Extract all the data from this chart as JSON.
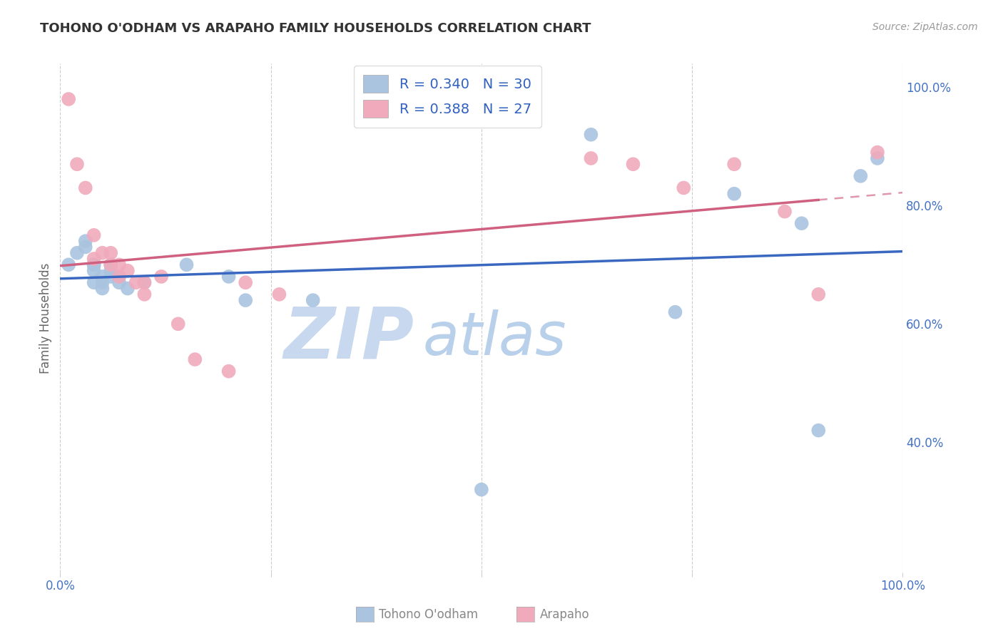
{
  "title": "TOHONO O'ODHAM VS ARAPAHO FAMILY HOUSEHOLDS CORRELATION CHART",
  "source": "Source: ZipAtlas.com",
  "ylabel": "Family Households",
  "xmin": 0.0,
  "xmax": 1.0,
  "ymin": 0.18,
  "ymax": 1.04,
  "xticks": [
    0.0,
    0.25,
    0.5,
    0.75,
    1.0
  ],
  "xticklabels": [
    "0.0%",
    "",
    "",
    "",
    "100.0%"
  ],
  "yticks_right": [
    0.4,
    0.6,
    0.8,
    1.0
  ],
  "ytick_right_labels": [
    "40.0%",
    "60.0%",
    "80.0%",
    "100.0%"
  ],
  "grid_color": "#cccccc",
  "background_color": "#ffffff",
  "tohono_color": "#aac4e0",
  "arapaho_color": "#f0aabc",
  "legend_label1": "R = 0.340   N = 30",
  "legend_label2": "R = 0.388   N = 27",
  "bottom_label1": "Tohono O'odham",
  "bottom_label2": "Arapaho",
  "tohono_x": [
    0.01,
    0.02,
    0.03,
    0.03,
    0.04,
    0.04,
    0.04,
    0.04,
    0.05,
    0.05,
    0.05,
    0.06,
    0.06,
    0.06,
    0.07,
    0.07,
    0.08,
    0.1,
    0.15,
    0.2,
    0.22,
    0.3,
    0.5,
    0.63,
    0.73,
    0.8,
    0.88,
    0.9,
    0.95,
    0.97
  ],
  "tohono_y": [
    0.7,
    0.72,
    0.74,
    0.73,
    0.7,
    0.7,
    0.69,
    0.67,
    0.68,
    0.67,
    0.66,
    0.7,
    0.69,
    0.68,
    0.68,
    0.67,
    0.66,
    0.67,
    0.7,
    0.68,
    0.64,
    0.64,
    0.32,
    0.92,
    0.62,
    0.82,
    0.77,
    0.42,
    0.85,
    0.88
  ],
  "arapaho_x": [
    0.01,
    0.02,
    0.03,
    0.04,
    0.04,
    0.05,
    0.06,
    0.06,
    0.07,
    0.07,
    0.08,
    0.09,
    0.1,
    0.1,
    0.12,
    0.14,
    0.16,
    0.2,
    0.22,
    0.26,
    0.63,
    0.68,
    0.74,
    0.8,
    0.86,
    0.9,
    0.97
  ],
  "arapaho_y": [
    0.98,
    0.87,
    0.83,
    0.75,
    0.71,
    0.72,
    0.72,
    0.7,
    0.7,
    0.68,
    0.69,
    0.67,
    0.67,
    0.65,
    0.68,
    0.6,
    0.54,
    0.52,
    0.67,
    0.65,
    0.88,
    0.87,
    0.83,
    0.87,
    0.79,
    0.65,
    0.89
  ],
  "watermark_zip": "ZIP",
  "watermark_atlas": "atlas",
  "watermark_zip_color": "#c8d8ee",
  "watermark_atlas_color": "#b8d0ea",
  "line_blue_color": "#3a68c0",
  "line_pink_color": "#d06080"
}
